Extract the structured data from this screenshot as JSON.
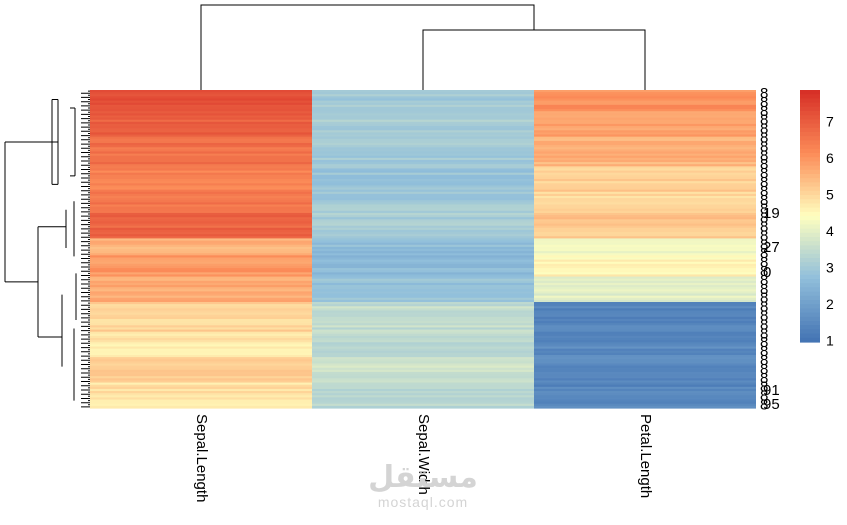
{
  "chart_data": {
    "type": "heatmap",
    "title": "",
    "columns": [
      "Sepal.Length",
      "Sepal.Width",
      "Petal.Length"
    ],
    "row_count": 150,
    "row_blocks": [
      {
        "rows": 10,
        "values": [
          7.4,
          3.0,
          6.1
        ]
      },
      {
        "rows": 12,
        "values": [
          7.0,
          3.1,
          5.9
        ]
      },
      {
        "rows": 14,
        "values": [
          6.7,
          3.0,
          5.6
        ]
      },
      {
        "rows": 12,
        "values": [
          6.4,
          2.9,
          5.2
        ]
      },
      {
        "rows": 10,
        "values": [
          6.6,
          3.0,
          5.0
        ]
      },
      {
        "rows": 12,
        "values": [
          6.9,
          3.1,
          5.3
        ]
      },
      {
        "rows": 8,
        "values": [
          5.6,
          2.7,
          4.3
        ]
      },
      {
        "rows": 10,
        "values": [
          6.0,
          2.6,
          4.6
        ]
      },
      {
        "rows": 12,
        "values": [
          5.7,
          2.8,
          4.0
        ]
      },
      {
        "rows": 14,
        "values": [
          5.1,
          3.5,
          1.4
        ]
      },
      {
        "rows": 12,
        "values": [
          4.8,
          3.4,
          1.5
        ]
      },
      {
        "rows": 12,
        "values": [
          5.2,
          3.7,
          1.5
        ]
      },
      {
        "rows": 12,
        "values": [
          4.9,
          3.3,
          1.4
        ]
      }
    ],
    "legend": {
      "position": "right",
      "min": 1,
      "max": 7.9,
      "ticks": [
        "1",
        "2",
        "3",
        "4",
        "5",
        "6",
        "7"
      ]
    },
    "visible_row_labels": [
      "19",
      "27",
      "0",
      "91",
      "95"
    ],
    "colors": {
      "low": "#4575b4",
      "mid_low": "#91bfdb",
      "mid": "#ffffbf",
      "mid_high": "#fc8d59",
      "high": "#d73027"
    },
    "dendrograms": [
      "column",
      "row"
    ]
  },
  "watermark": {
    "arabic": "مستقل",
    "latin": "mostaql.com"
  }
}
